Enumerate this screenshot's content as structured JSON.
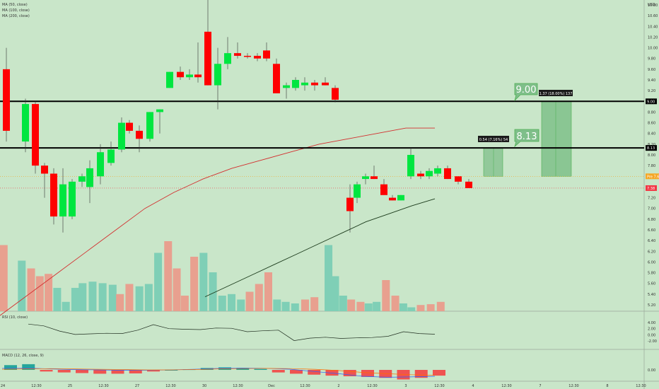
{
  "legend": {
    "ma50": "MA (50, close)",
    "ma100": "MA (100, close)",
    "ma200": "MA (200, close)",
    "rsi": "RSI (10, close)",
    "macd": "MACD (12, 26, close, 9)"
  },
  "price_axis": {
    "unit": "USD",
    "ticks": [
      "10.80",
      "10.60",
      "10.40",
      "10.20",
      "10.00",
      "9.80",
      "9.60",
      "9.40",
      "9.20",
      "9.00",
      "8.80",
      "8.60",
      "8.40",
      "8.20",
      "8.00",
      "7.80",
      "7.60",
      "7.40",
      "7.20",
      "7.00",
      "6.80",
      "6.60",
      "6.40",
      "6.20",
      "6.00",
      "5.80",
      "5.60",
      "5.40",
      "5.20"
    ],
    "tags": [
      {
        "text": "9.00",
        "color": "#000000"
      },
      {
        "text": "8.13",
        "color": "#000000"
      },
      {
        "text": "Pre 7.60",
        "color": "#f5a623"
      },
      {
        "text": "7.38",
        "color": "#f23645"
      }
    ]
  },
  "rsi_axis": {
    "ticks": [
      "4.00",
      "2.00",
      "0.00",
      "-2.00"
    ]
  },
  "macd_axis": {
    "ticks": [
      "0.00"
    ]
  },
  "time_axis": {
    "labels": [
      "24",
      "12:30",
      "25",
      "12:30",
      "27",
      "12:30",
      "30",
      "12:30",
      "Dec",
      "12:30",
      "2",
      "12:30",
      "3",
      "12:30",
      "4",
      "12:30",
      "7",
      "12:30",
      "8",
      "12:30"
    ]
  },
  "targets": [
    {
      "label": "9.00",
      "info": "1.37 (18.00%) 137"
    },
    {
      "label": "8.13",
      "info": "0.54 (7.16%) 54"
    }
  ],
  "colors": {
    "background": "#c9e6c9",
    "up": "#00e640",
    "down": "#ff0000",
    "vol_up": "#7fcfb6",
    "vol_down": "#e8a08f",
    "ma_red": "#d32f2f",
    "ma_dark": "#1b3a1b",
    "target_fill": "#7fbf8a",
    "target_border": "#4caf50",
    "pre_line": "#f5a623",
    "last_line": "#f23645"
  },
  "chart_data": {
    "type": "candlestick",
    "x_axis": "time (30-min sessions)",
    "y_axis": "price USD",
    "ylim": [
      5.15,
      10.9
    ],
    "levels": [
      {
        "name": "Resistance",
        "value": 9.0
      },
      {
        "name": "Resistance",
        "value": 8.13
      }
    ],
    "candles": [
      {
        "o": 9.6,
        "h": 10.0,
        "l": 8.25,
        "c": 8.45
      },
      {
        "o": 8.25,
        "h": 9.05,
        "l": 8.05,
        "c": 8.95
      },
      {
        "o": 8.95,
        "h": 9.0,
        "l": 7.65,
        "c": 7.8
      },
      {
        "o": 7.8,
        "h": 7.85,
        "l": 7.2,
        "c": 7.65
      },
      {
        "o": 7.65,
        "h": 7.75,
        "l": 6.7,
        "c": 6.85
      },
      {
        "o": 6.85,
        "h": 7.75,
        "l": 6.55,
        "c": 7.45
      },
      {
        "o": 6.85,
        "h": 7.55,
        "l": 6.8,
        "c": 7.5
      },
      {
        "o": 7.5,
        "h": 7.65,
        "l": 7.4,
        "c": 7.6
      },
      {
        "o": 7.4,
        "h": 7.9,
        "l": 7.1,
        "c": 7.75
      },
      {
        "o": 7.6,
        "h": 8.2,
        "l": 7.45,
        "c": 8.05
      },
      {
        "o": 7.85,
        "h": 8.25,
        "l": 7.8,
        "c": 8.1
      },
      {
        "o": 8.1,
        "h": 8.7,
        "l": 8.05,
        "c": 8.6
      },
      {
        "o": 8.6,
        "h": 8.65,
        "l": 8.4,
        "c": 8.45
      },
      {
        "o": 8.45,
        "h": 8.55,
        "l": 8.05,
        "c": 8.3
      },
      {
        "o": 8.3,
        "h": 8.8,
        "l": 8.25,
        "c": 8.8
      },
      {
        "o": 8.8,
        "h": 8.85,
        "l": 8.4,
        "c": 8.85
      },
      {
        "o": 9.25,
        "h": 9.55,
        "l": 9.25,
        "c": 9.55
      },
      {
        "o": 9.55,
        "h": 9.65,
        "l": 9.4,
        "c": 9.45
      },
      {
        "o": 9.45,
        "h": 9.6,
        "l": 9.4,
        "c": 9.5
      },
      {
        "o": 9.5,
        "h": 10.1,
        "l": 9.35,
        "c": 9.45
      },
      {
        "o": 10.3,
        "h": 10.95,
        "l": 9.3,
        "c": 9.3
      },
      {
        "o": 9.3,
        "h": 10.0,
        "l": 8.85,
        "c": 9.7
      },
      {
        "o": 9.7,
        "h": 10.2,
        "l": 9.6,
        "c": 9.9
      },
      {
        "o": 9.9,
        "h": 10.1,
        "l": 9.8,
        "c": 9.85
      },
      {
        "o": 9.85,
        "h": 9.9,
        "l": 9.8,
        "c": 9.83
      },
      {
        "o": 9.85,
        "h": 9.9,
        "l": 9.75,
        "c": 9.8
      },
      {
        "o": 9.95,
        "h": 10.1,
        "l": 9.75,
        "c": 9.8
      },
      {
        "o": 9.7,
        "h": 9.8,
        "l": 9.15,
        "c": 9.15
      },
      {
        "o": 9.25,
        "h": 9.35,
        "l": 9.05,
        "c": 9.3
      },
      {
        "o": 9.25,
        "h": 9.45,
        "l": 9.2,
        "c": 9.4
      },
      {
        "o": 9.3,
        "h": 9.45,
        "l": 9.2,
        "c": 9.35
      },
      {
        "o": 9.35,
        "h": 9.4,
        "l": 9.2,
        "c": 9.3
      },
      {
        "o": 9.35,
        "h": 9.45,
        "l": 9.3,
        "c": 9.3
      },
      {
        "o": 9.25,
        "h": 9.3,
        "l": 8.98,
        "c": 9.03
      },
      {
        "o": 7.2,
        "h": 7.45,
        "l": 6.55,
        "c": 6.95
      },
      {
        "o": 7.2,
        "h": 7.5,
        "l": 7.1,
        "c": 7.45
      },
      {
        "o": 7.55,
        "h": 7.65,
        "l": 7.45,
        "c": 7.6
      },
      {
        "o": 7.6,
        "h": 7.8,
        "l": 7.55,
        "c": 7.55
      },
      {
        "o": 7.45,
        "h": 7.55,
        "l": 7.25,
        "c": 7.25
      },
      {
        "o": 7.2,
        "h": 7.25,
        "l": 7.15,
        "c": 7.15
      },
      {
        "o": 7.15,
        "h": 7.25,
        "l": 7.15,
        "c": 7.25
      },
      {
        "o": 7.6,
        "h": 8.13,
        "l": 7.55,
        "c": 8.0
      },
      {
        "o": 7.65,
        "h": 7.7,
        "l": 7.55,
        "c": 7.6
      },
      {
        "o": 7.6,
        "h": 7.75,
        "l": 7.55,
        "c": 7.7
      },
      {
        "o": 7.65,
        "h": 7.8,
        "l": 7.6,
        "c": 7.75
      },
      {
        "o": 7.75,
        "h": 7.8,
        "l": 7.55,
        "c": 7.55
      },
      {
        "o": 7.6,
        "h": 7.6,
        "l": 7.45,
        "c": 7.5
      },
      {
        "o": 7.5,
        "h": 7.55,
        "l": 7.38,
        "c": 7.38
      }
    ],
    "volume": [
      {
        "v": 0.85,
        "up": false
      },
      {
        "v": 0.65,
        "up": true
      },
      {
        "v": 0.55,
        "up": false
      },
      {
        "v": 0.45,
        "up": false
      },
      {
        "v": 0.48,
        "up": false
      },
      {
        "v": 0.3,
        "up": true
      },
      {
        "v": 0.12,
        "up": true
      },
      {
        "v": 0.3,
        "up": true
      },
      {
        "v": 0.36,
        "up": true
      },
      {
        "v": 0.38,
        "up": true
      },
      {
        "v": 0.36,
        "up": true
      },
      {
        "v": 0.34,
        "up": true
      },
      {
        "v": 0.22,
        "up": false
      },
      {
        "v": 0.35,
        "up": false
      },
      {
        "v": 0.32,
        "up": true
      },
      {
        "v": 0.35,
        "up": true
      },
      {
        "v": 0.75,
        "up": true
      },
      {
        "v": 0.9,
        "up": false
      },
      {
        "v": 0.55,
        "up": false
      },
      {
        "v": 0.2,
        "up": false
      },
      {
        "v": 0.7,
        "up": false
      },
      {
        "v": 0.75,
        "up": true
      },
      {
        "v": 0.5,
        "up": true
      },
      {
        "v": 0.2,
        "up": true
      },
      {
        "v": 0.22,
        "up": true
      },
      {
        "v": 0.15,
        "up": true
      },
      {
        "v": 0.25,
        "up": false
      },
      {
        "v": 0.35,
        "up": false
      },
      {
        "v": 0.5,
        "up": false
      },
      {
        "v": 0.15,
        "up": true
      },
      {
        "v": 0.12,
        "up": true
      },
      {
        "v": 0.1,
        "up": true
      },
      {
        "v": 0.15,
        "up": false
      },
      {
        "v": 0.18,
        "up": false
      },
      {
        "v": 0.85,
        "up": true
      },
      {
        "v": 0.45,
        "up": true
      },
      {
        "v": 0.2,
        "up": true
      },
      {
        "v": 0.15,
        "up": false
      },
      {
        "v": 0.12,
        "up": false
      },
      {
        "v": 0.1,
        "up": true
      },
      {
        "v": 0.12,
        "up": true
      },
      {
        "v": 0.4,
        "up": false
      },
      {
        "v": 0.2,
        "up": false
      },
      {
        "v": 0.1,
        "up": true
      },
      {
        "v": 0.05,
        "up": true
      },
      {
        "v": 0.08,
        "up": false
      },
      {
        "v": 0.09,
        "up": false
      },
      {
        "v": 0.12,
        "up": false
      }
    ],
    "ma_red": [
      5.0,
      5.4,
      5.8,
      6.2,
      6.6,
      7.0,
      7.3,
      7.55,
      7.75,
      7.9,
      8.05,
      8.2,
      8.3,
      8.4,
      8.5,
      8.5
    ],
    "ma_dark": [
      5.35,
      5.55,
      5.75,
      5.95,
      6.15,
      6.35,
      6.55,
      6.75,
      6.9,
      7.05,
      7.18
    ],
    "rsi": [
      3.5,
      2.9,
      1.2,
      0.1,
      0.3,
      0.5,
      0.4,
      1.5,
      3.3,
      2.0,
      1.8,
      1.7,
      2.2,
      2.1,
      1.0,
      1.3,
      1.5,
      -1.9,
      -1.1,
      -0.8,
      -1.2,
      -1.0,
      -0.9,
      -0.5,
      1.0,
      0.4,
      0.2
    ],
    "macd_hist": [
      0.15,
      0.18,
      -0.05,
      -0.08,
      -0.1,
      -0.12,
      -0.12,
      -0.11,
      -0.05,
      0,
      0.02,
      0.06,
      0.08,
      0.06,
      0.03,
      -0.08,
      -0.12,
      -0.15,
      -0.18,
      -0.2,
      -0.22,
      -0.25,
      -0.3,
      -0.25,
      -0.18
    ]
  }
}
